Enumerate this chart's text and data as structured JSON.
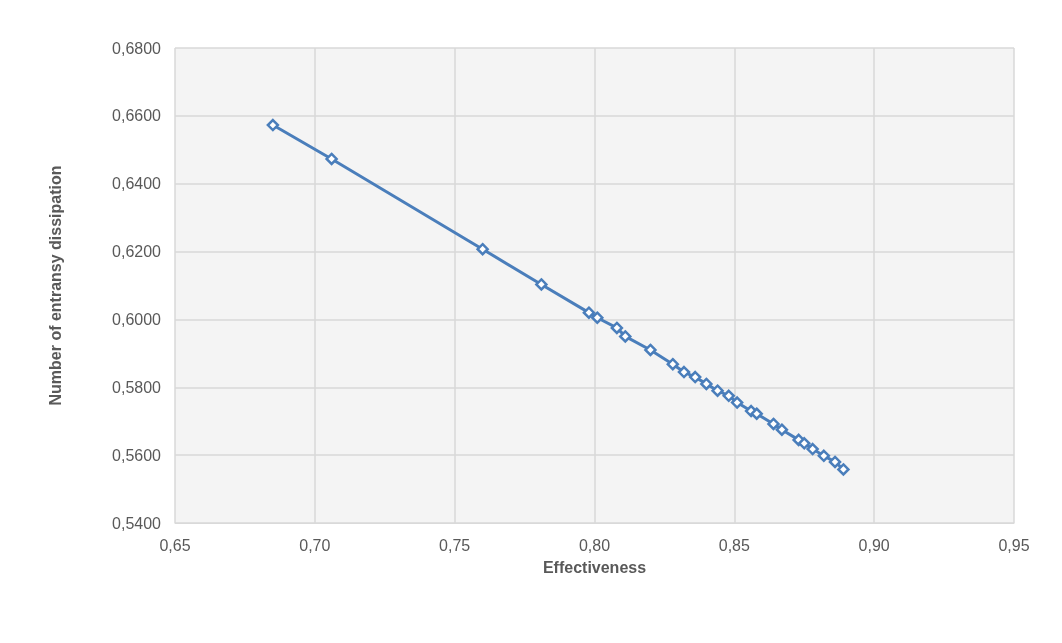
{
  "chart_data": {
    "type": "line",
    "xlabel": "Effectiveness",
    "ylabel": "Number of entransy dissipation",
    "x": [
      0.685,
      0.706,
      0.76,
      0.781,
      0.798,
      0.801,
      0.808,
      0.811,
      0.82,
      0.828,
      0.832,
      0.836,
      0.84,
      0.844,
      0.848,
      0.851,
      0.856,
      0.858,
      0.864,
      0.867,
      0.873,
      0.875,
      0.878,
      0.882,
      0.886,
      0.889
    ],
    "series": [
      {
        "color": "#4a7ebb",
        "values": [
          0.6573,
          0.6473,
          0.6207,
          0.6103,
          0.602,
          0.6005,
          0.5975,
          0.595,
          0.591,
          0.5868,
          0.5845,
          0.583,
          0.581,
          0.579,
          0.5775,
          0.5755,
          0.573,
          0.5722,
          0.5692,
          0.5675,
          0.5645,
          0.5635,
          0.5618,
          0.5598,
          0.558,
          0.5558
        ]
      }
    ],
    "xlim": [
      0.65,
      0.95
    ],
    "xticks": [
      {
        "value": 0.65,
        "label": "0,65"
      },
      {
        "value": 0.7,
        "label": "0,70"
      },
      {
        "value": 0.75,
        "label": "0,75"
      },
      {
        "value": 0.8,
        "label": "0,80"
      },
      {
        "value": 0.85,
        "label": "0,85"
      },
      {
        "value": 0.9,
        "label": "0,90"
      },
      {
        "value": 0.95,
        "label": "0,95"
      }
    ],
    "ylim": [
      0.54,
      0.68
    ],
    "yticks": [
      {
        "value": 0.54,
        "label": "0,5400"
      },
      {
        "value": 0.56,
        "label": "0,5600"
      },
      {
        "value": 0.58,
        "label": "0,5800"
      },
      {
        "value": 0.6,
        "label": "0,6000"
      },
      {
        "value": 0.62,
        "label": "0,6200"
      },
      {
        "value": 0.64,
        "label": "0,6400"
      },
      {
        "value": 0.66,
        "label": "0,6600"
      },
      {
        "value": 0.68,
        "label": "0,6800"
      }
    ],
    "grid": true,
    "marker": "diamond",
    "line_style": "solid"
  }
}
